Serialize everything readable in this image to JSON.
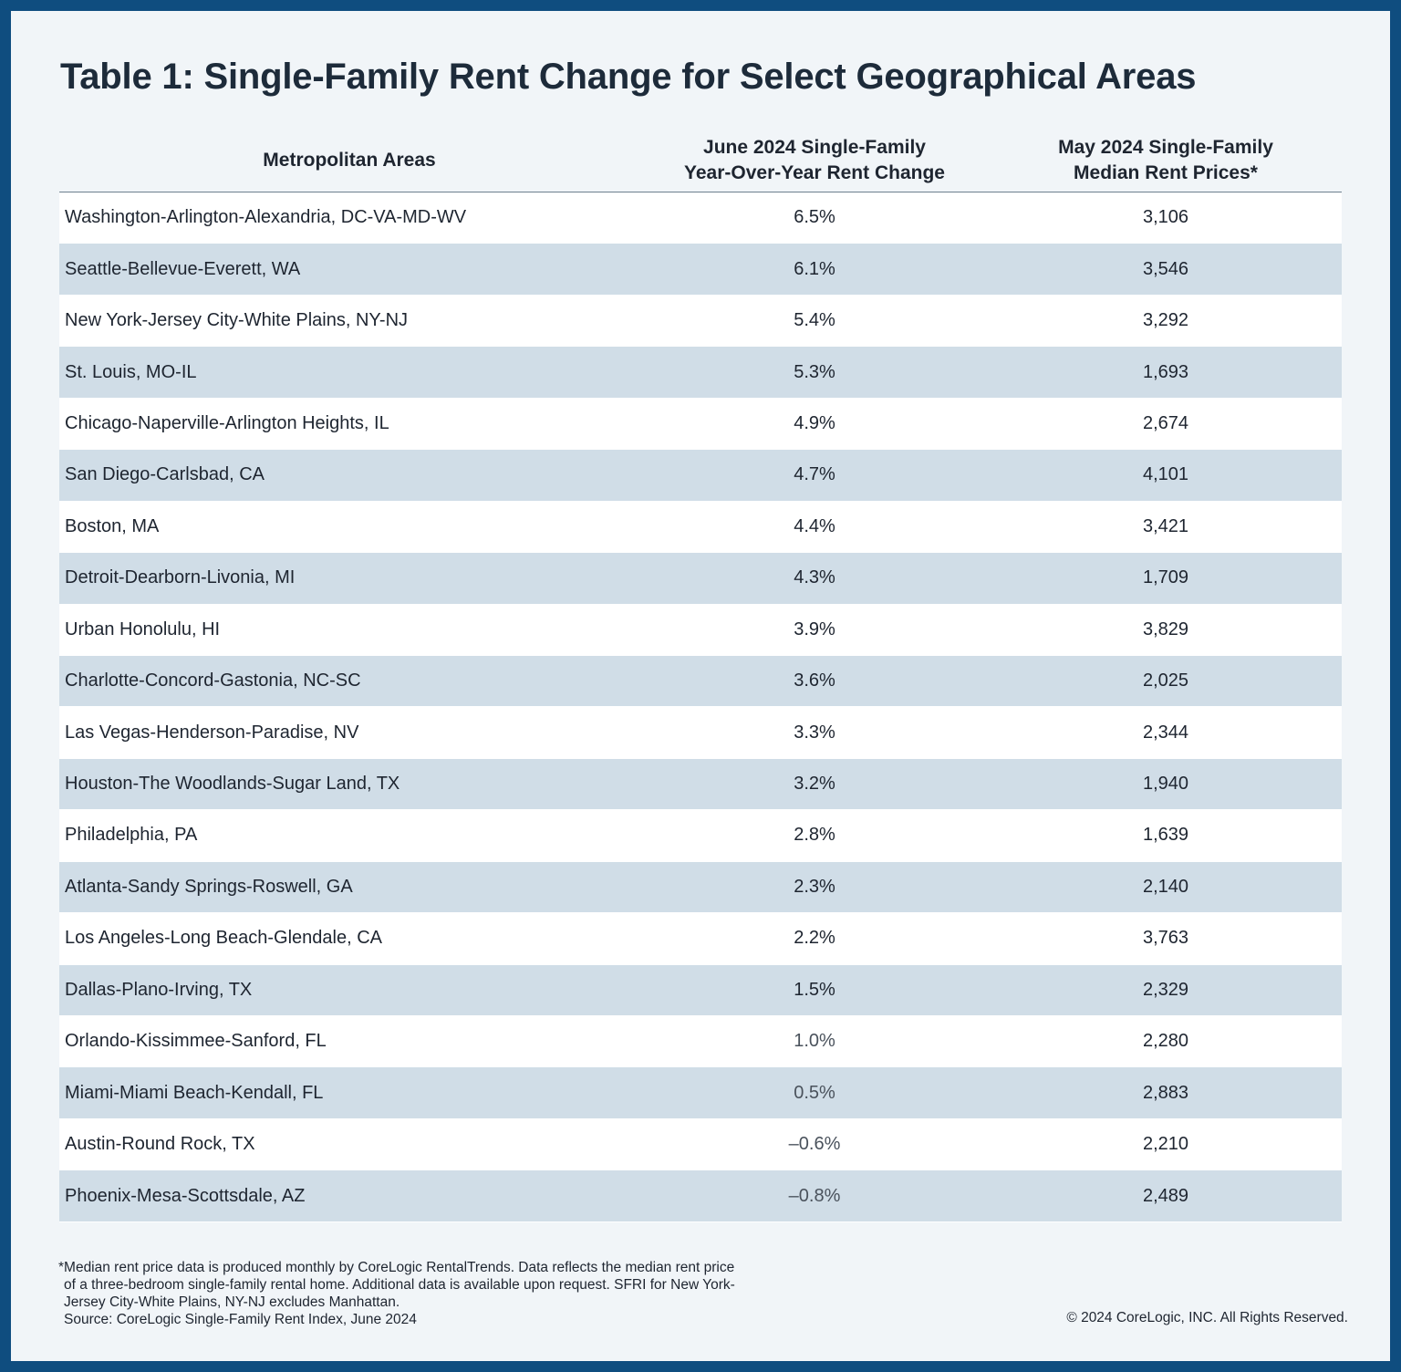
{
  "title": "Table 1: Single-Family Rent Change for Select Geographical Areas",
  "table": {
    "headers": {
      "area": "Metropolitan Areas",
      "change_line1": "June 2024 Single-Family",
      "change_line2": "Year-Over-Year Rent Change",
      "price_line1": "May 2024 Single-Family",
      "price_line2": "Median Rent Prices*"
    },
    "rows": [
      {
        "area": "Washington-Arlington-Alexandria, DC-VA-MD-WV",
        "change": "6.5%",
        "price": "3,106"
      },
      {
        "area": "Seattle-Bellevue-Everett, WA",
        "change": "6.1%",
        "price": "3,546"
      },
      {
        "area": "New York-Jersey City-White Plains, NY-NJ",
        "change": "5.4%",
        "price": "3,292"
      },
      {
        "area": "St. Louis, MO-IL",
        "change": "5.3%",
        "price": "1,693"
      },
      {
        "area": "Chicago-Naperville-Arlington Heights, IL",
        "change": "4.9%",
        "price": "2,674"
      },
      {
        "area": "San Diego-Carlsbad, CA",
        "change": "4.7%",
        "price": "4,101"
      },
      {
        "area": "Boston, MA",
        "change": "4.4%",
        "price": "3,421"
      },
      {
        "area": "Detroit-Dearborn-Livonia, MI",
        "change": "4.3%",
        "price": "1,709"
      },
      {
        "area": "Urban Honolulu, HI",
        "change": "3.9%",
        "price": "3,829"
      },
      {
        "area": "Charlotte-Concord-Gastonia, NC-SC",
        "change": "3.6%",
        "price": "2,025"
      },
      {
        "area": "Las Vegas-Henderson-Paradise, NV",
        "change": "3.3%",
        "price": "2,344"
      },
      {
        "area": "Houston-The Woodlands-Sugar Land, TX",
        "change": "3.2%",
        "price": "1,940"
      },
      {
        "area": "Philadelphia, PA",
        "change": "2.8%",
        "price": "1,639"
      },
      {
        "area": "Atlanta-Sandy Springs-Roswell, GA",
        "change": "2.3%",
        "price": "2,140"
      },
      {
        "area": "Los Angeles-Long Beach-Glendale, CA",
        "change": "2.2%",
        "price": "3,763"
      },
      {
        "area": "Dallas-Plano-Irving, TX",
        "change": "1.5%",
        "price": "2,329"
      },
      {
        "area": "Orlando-Kissimmee-Sanford, FL",
        "change": "1.0%",
        "price": "2,280"
      },
      {
        "area": "Miami-Miami Beach-Kendall, FL",
        "change": "0.5%",
        "price": "2,883"
      },
      {
        "area": "Austin-Round Rock, TX",
        "change": "–0.6%",
        "price": "2,210"
      },
      {
        "area": "Phoenix-Mesa-Scottsdale, AZ",
        "change": "–0.8%",
        "price": "2,489"
      }
    ]
  },
  "footnote": {
    "line1": "*Median rent price data is produced monthly by CoreLogic RentalTrends. Data reflects the median rent price",
    "line2": "of a three-bedroom single-family rental home. Additional data is available upon request. SFRI for New York-",
    "line3": "Jersey City-White Plains, NY-NJ excludes Manhattan.",
    "source": "Source: CoreLogic Single-Family Rent Index, June 2024"
  },
  "copyright": "© 2024 CoreLogic, INC. All Rights Reserved.",
  "colors": {
    "frame": "#0f4d7f",
    "background": "#f1f5f8",
    "row_alt": "#d0dde7",
    "title": "#1d2b3a"
  }
}
